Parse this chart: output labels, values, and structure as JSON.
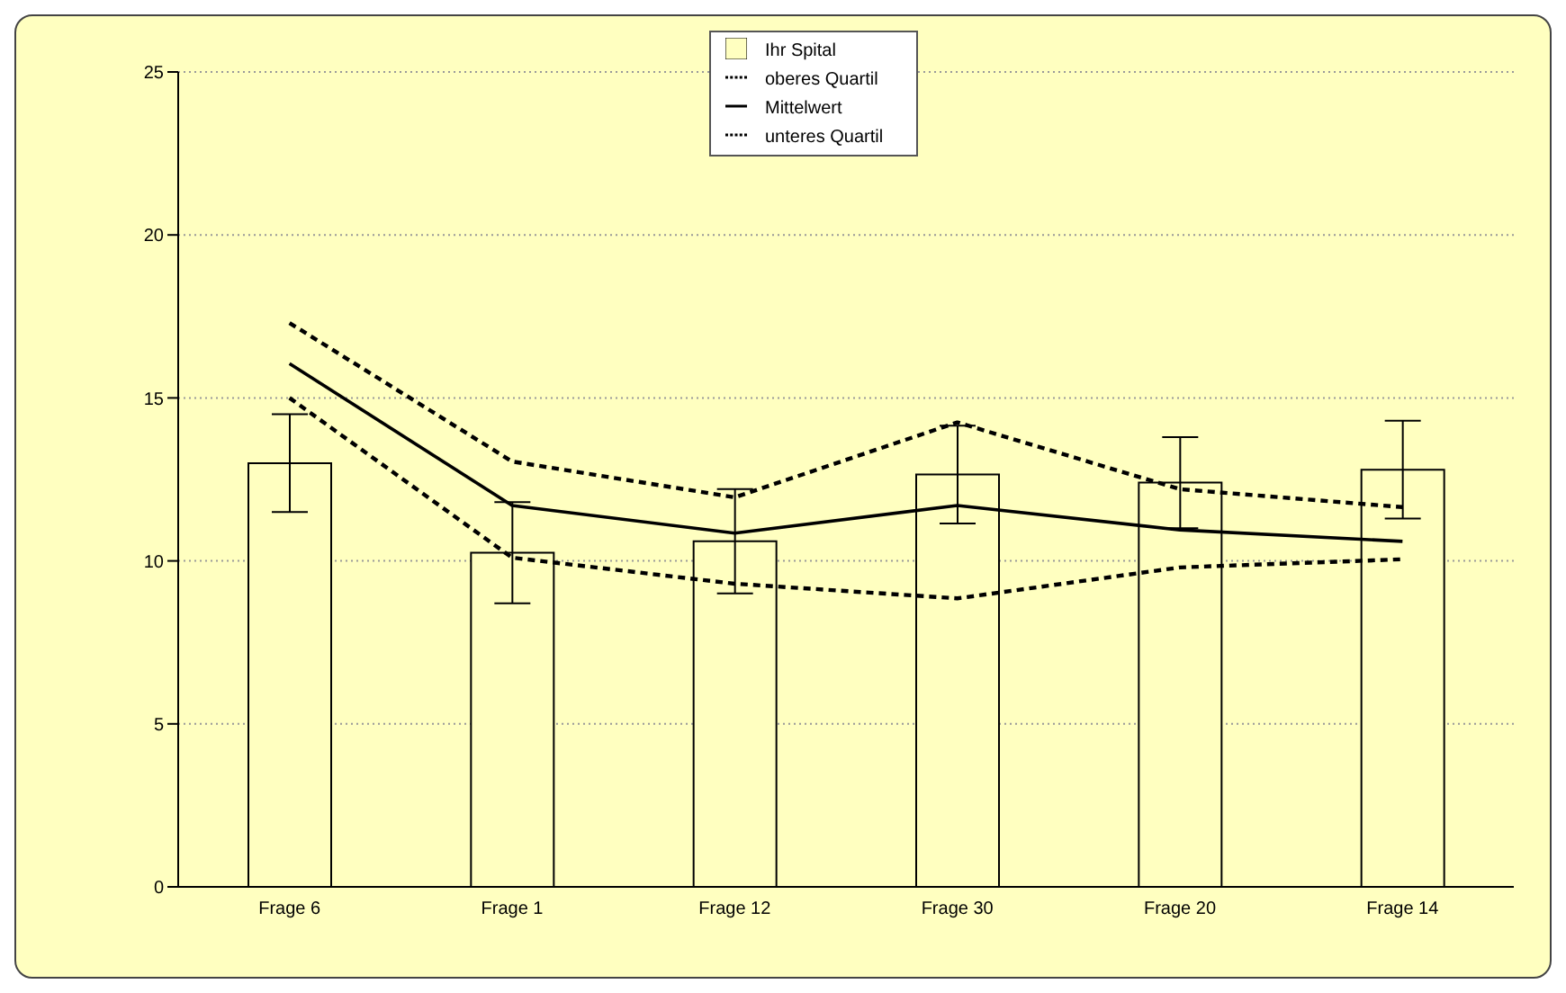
{
  "chart_data": {
    "type": "bar",
    "categories": [
      "Frage 6",
      "Frage 1",
      "Frage 12",
      "Frage 30",
      "Frage 20",
      "Frage 14"
    ],
    "series": [
      {
        "name": "Ihr Spital",
        "type": "bar",
        "color": "#ffffc0",
        "values": [
          13.0,
          10.25,
          10.6,
          12.65,
          12.4,
          12.8
        ],
        "errors": [
          1.5,
          1.55,
          1.6,
          1.5,
          1.4,
          1.5
        ]
      },
      {
        "name": "oberes Quartil",
        "type": "line",
        "line_style": "dashed",
        "color": "#000000",
        "values": [
          17.3,
          13.05,
          11.95,
          14.25,
          12.2,
          11.65
        ]
      },
      {
        "name": "Mittelwert",
        "type": "line",
        "line_style": "solid",
        "color": "#000000",
        "values": [
          16.05,
          11.7,
          10.85,
          11.7,
          10.95,
          10.6
        ]
      },
      {
        "name": "unteres Quartil",
        "type": "line",
        "line_style": "dashed",
        "color": "#000000",
        "values": [
          15.0,
          10.1,
          9.3,
          8.85,
          9.8,
          10.05
        ]
      }
    ],
    "ylim": [
      0,
      25
    ],
    "yticks": [
      0,
      5,
      10,
      15,
      20,
      25
    ],
    "grid": "y",
    "legend": "top",
    "marker": "none"
  }
}
